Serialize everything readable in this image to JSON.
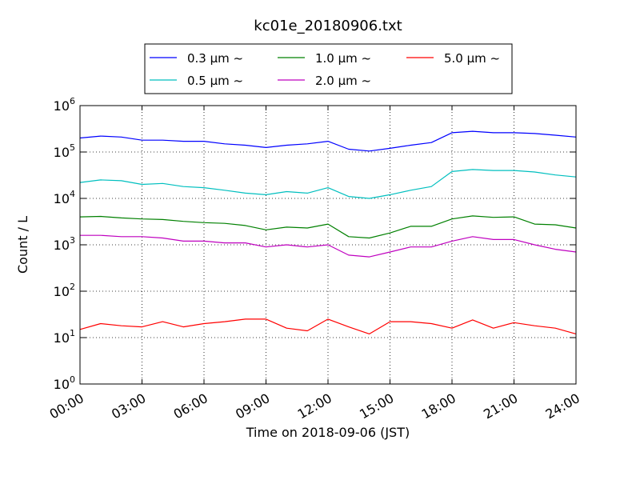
{
  "chart_data": {
    "type": "line",
    "title": "kc01e_20180906.txt",
    "xlabel": "Time on 2018-09-06 (JST)",
    "ylabel": "Count / L",
    "x_ticks": [
      "00:00",
      "03:00",
      "06:00",
      "09:00",
      "12:00",
      "15:00",
      "18:00",
      "21:00",
      "24:00"
    ],
    "xlim_hours": [
      0,
      24
    ],
    "yscale": "log",
    "ylim": [
      1,
      1000000
    ],
    "y_ticks": [
      {
        "base": "10",
        "exp": "0"
      },
      {
        "base": "10",
        "exp": "1"
      },
      {
        "base": "10",
        "exp": "2"
      },
      {
        "base": "10",
        "exp": "3"
      },
      {
        "base": "10",
        "exp": "4"
      },
      {
        "base": "10",
        "exp": "5"
      },
      {
        "base": "10",
        "exp": "6"
      }
    ],
    "grid": true,
    "legend_position": "top-center, outside plot",
    "series": [
      {
        "name": "0.3 μm ~",
        "color": "#0000ff",
        "x": [
          0,
          1,
          2,
          3,
          4,
          5,
          6,
          7,
          8,
          9,
          10,
          11,
          12,
          13,
          14,
          15,
          16,
          17,
          18,
          19,
          20,
          21,
          22,
          23,
          24
        ],
        "y": [
          200000,
          220000,
          210000,
          180000,
          180000,
          170000,
          170000,
          150000,
          140000,
          125000,
          140000,
          150000,
          170000,
          115000,
          105000,
          120000,
          140000,
          160000,
          260000,
          280000,
          260000,
          260000,
          250000,
          230000,
          210000
        ]
      },
      {
        "name": "0.5 μm ~",
        "color": "#00bfbf",
        "x": [
          0,
          1,
          2,
          3,
          4,
          5,
          6,
          7,
          8,
          9,
          10,
          11,
          12,
          13,
          14,
          15,
          16,
          17,
          18,
          19,
          20,
          21,
          22,
          23,
          24
        ],
        "y": [
          22000,
          25000,
          24000,
          20000,
          21000,
          18000,
          17000,
          15000,
          13000,
          12000,
          14000,
          13000,
          17000,
          11000,
          10000,
          12000,
          15000,
          18000,
          38000,
          42000,
          40000,
          40000,
          37000,
          32000,
          29000
        ]
      },
      {
        "name": "1.0 μm ~",
        "color": "#008000",
        "x": [
          0,
          1,
          2,
          3,
          4,
          5,
          6,
          7,
          8,
          9,
          10,
          11,
          12,
          13,
          14,
          15,
          16,
          17,
          18,
          19,
          20,
          21,
          22,
          23,
          24
        ],
        "y": [
          4000,
          4100,
          3800,
          3600,
          3500,
          3200,
          3000,
          2900,
          2600,
          2100,
          2400,
          2300,
          2800,
          1500,
          1400,
          1800,
          2500,
          2500,
          3600,
          4200,
          3900,
          4000,
          2800,
          2700,
          2300
        ]
      },
      {
        "name": "2.0 μm ~",
        "color": "#bf00bf",
        "x": [
          0,
          1,
          2,
          3,
          4,
          5,
          6,
          7,
          8,
          9,
          10,
          11,
          12,
          13,
          14,
          15,
          16,
          17,
          18,
          19,
          20,
          21,
          22,
          23,
          24
        ],
        "y": [
          1600,
          1600,
          1500,
          1500,
          1400,
          1200,
          1200,
          1100,
          1100,
          900,
          1000,
          900,
          1000,
          600,
          550,
          700,
          900,
          900,
          1200,
          1500,
          1300,
          1300,
          1000,
          800,
          700
        ]
      },
      {
        "name": "5.0 μm ~",
        "color": "#ff0000",
        "x": [
          0,
          1,
          2,
          3,
          4,
          5,
          6,
          7,
          8,
          9,
          10,
          11,
          12,
          13,
          14,
          15,
          16,
          17,
          18,
          19,
          20,
          21,
          22,
          23,
          24
        ],
        "y": [
          15,
          20,
          18,
          17,
          22,
          17,
          20,
          22,
          25,
          25,
          16,
          14,
          25,
          17,
          12,
          22,
          22,
          20,
          16,
          24,
          16,
          21,
          18,
          16,
          12
        ]
      }
    ]
  }
}
